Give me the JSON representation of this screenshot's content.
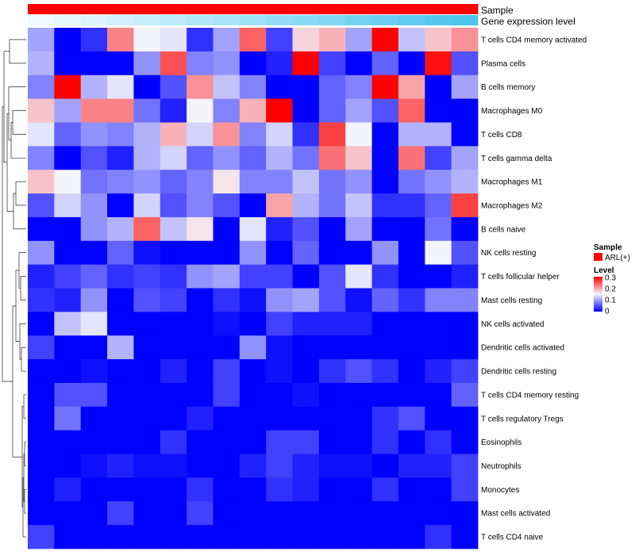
{
  "chart_data": {
    "type": "heatmap",
    "title": "",
    "annotations": [
      {
        "name": "Sample",
        "label": "Sample"
      },
      {
        "name": "Gene expression level",
        "label": "Gene expression level"
      }
    ],
    "rows": [
      "T cells CD4 memory activated",
      "Plasma cells",
      "B cells memory",
      "Macrophages M0",
      "T cells CD8",
      "T cells gamma delta",
      "Macrophages M1",
      "Macrophages M2",
      "B cells naive",
      "NK cells resting",
      "T cells follicular helper",
      "Mast cells resting",
      "NK cells activated",
      "Dendritic cells activated",
      "Dendritic cells resting",
      "T cells CD4 memory resting",
      "T cells regulatory  Tregs",
      "Eosinophils",
      "Neutrophils",
      "Monocytes",
      "Mast cells activated",
      "T cells CD4 naive"
    ],
    "n_columns": 17,
    "gene_expression_level": [
      0.0,
      0.02,
      0.04,
      0.06,
      0.08,
      0.1,
      0.12,
      0.14,
      0.16,
      0.18,
      0.2,
      0.22,
      0.24,
      0.26,
      0.28,
      0.3,
      0.32
    ],
    "values": [
      [
        0.1,
        0.0,
        0.03,
        0.22,
        0.15,
        0.14,
        0.03,
        0.1,
        0.24,
        0.04,
        0.17,
        0.19,
        0.1,
        0.3,
        0.12,
        0.18,
        0.21
      ],
      [
        0.11,
        0.0,
        0.0,
        0.0,
        0.09,
        0.25,
        0.08,
        0.09,
        0.0,
        0.02,
        0.3,
        0.04,
        0.0,
        0.06,
        0.0,
        0.29,
        0.05
      ],
      [
        0.08,
        0.3,
        0.11,
        0.14,
        0.0,
        0.05,
        0.21,
        0.12,
        0.08,
        0.0,
        0.0,
        0.06,
        0.08,
        0.3,
        0.2,
        0.0,
        0.1
      ],
      [
        0.18,
        0.1,
        0.22,
        0.22,
        0.07,
        0.02,
        0.15,
        0.08,
        0.19,
        0.3,
        0.0,
        0.06,
        0.1,
        0.05,
        0.24,
        0.0,
        0.0
      ],
      [
        0.14,
        0.06,
        0.09,
        0.08,
        0.11,
        0.19,
        0.13,
        0.21,
        0.08,
        0.13,
        0.03,
        0.26,
        0.15,
        0.0,
        0.11,
        0.11,
        0.0
      ],
      [
        0.08,
        0.0,
        0.05,
        0.02,
        0.11,
        0.13,
        0.06,
        0.09,
        0.06,
        0.11,
        0.07,
        0.23,
        0.18,
        0.0,
        0.23,
        0.04,
        0.1
      ],
      [
        0.18,
        0.15,
        0.07,
        0.08,
        0.09,
        0.06,
        0.08,
        0.16,
        0.08,
        0.08,
        0.12,
        0.07,
        0.09,
        0.0,
        0.07,
        0.09,
        0.11
      ],
      [
        0.05,
        0.13,
        0.09,
        0.0,
        0.13,
        0.05,
        0.08,
        0.05,
        0.0,
        0.2,
        0.11,
        0.07,
        0.12,
        0.03,
        0.03,
        0.06,
        0.26
      ],
      [
        0.0,
        0.0,
        0.09,
        0.11,
        0.24,
        0.12,
        0.16,
        0.0,
        0.14,
        0.02,
        0.05,
        0.0,
        0.1,
        0.0,
        0.0,
        0.07,
        0.0
      ],
      [
        0.09,
        0.0,
        0.0,
        0.06,
        0.01,
        0.0,
        0.0,
        0.0,
        0.09,
        0.0,
        0.06,
        0.0,
        0.0,
        0.09,
        0.0,
        0.15,
        0.05
      ],
      [
        0.02,
        0.04,
        0.06,
        0.03,
        0.04,
        0.03,
        0.09,
        0.1,
        0.04,
        0.04,
        0.0,
        0.05,
        0.14,
        0.03,
        0.0,
        0.0,
        0.02
      ],
      [
        0.03,
        0.02,
        0.09,
        0.0,
        0.05,
        0.04,
        0.0,
        0.03,
        0.01,
        0.09,
        0.1,
        0.05,
        0.01,
        0.06,
        0.03,
        0.08,
        0.08
      ],
      [
        0.0,
        0.12,
        0.14,
        0.0,
        0.0,
        0.0,
        0.0,
        0.01,
        0.0,
        0.04,
        0.02,
        0.02,
        0.02,
        0.0,
        0.0,
        0.0,
        0.0
      ],
      [
        0.04,
        0.0,
        0.0,
        0.11,
        0.0,
        0.0,
        0.0,
        0.0,
        0.09,
        0.01,
        0.0,
        0.0,
        0.0,
        0.0,
        0.0,
        0.0,
        0.0
      ],
      [
        0.0,
        0.0,
        0.01,
        0.0,
        0.0,
        0.02,
        0.0,
        0.04,
        0.0,
        0.01,
        0.0,
        0.03,
        0.05,
        0.03,
        0.0,
        0.02,
        0.04
      ],
      [
        0.0,
        0.05,
        0.05,
        0.0,
        0.0,
        0.0,
        0.0,
        0.04,
        0.0,
        0.0,
        0.01,
        0.0,
        0.0,
        0.0,
        0.0,
        0.0,
        0.06
      ],
      [
        0.0,
        0.07,
        0.0,
        0.0,
        0.0,
        0.0,
        0.02,
        0.0,
        0.0,
        0.0,
        0.0,
        0.0,
        0.0,
        0.03,
        0.05,
        0.0,
        0.0
      ],
      [
        0.0,
        0.0,
        0.0,
        0.0,
        0.0,
        0.03,
        0.0,
        0.0,
        0.0,
        0.04,
        0.04,
        0.0,
        0.0,
        0.03,
        0.0,
        0.03,
        0.0
      ],
      [
        0.0,
        0.0,
        0.01,
        0.02,
        0.01,
        0.01,
        0.0,
        0.0,
        0.02,
        0.04,
        0.02,
        0.01,
        0.01,
        0.0,
        0.02,
        0.02,
        0.04
      ],
      [
        0.0,
        0.02,
        0.0,
        0.0,
        0.0,
        0.0,
        0.03,
        0.0,
        0.0,
        0.03,
        0.02,
        0.0,
        0.0,
        0.03,
        0.0,
        0.0,
        0.04
      ],
      [
        0.0,
        0.0,
        0.0,
        0.04,
        0.0,
        0.0,
        0.04,
        0.0,
        0.0,
        0.0,
        0.0,
        0.0,
        0.0,
        0.0,
        0.0,
        0.0,
        0.0
      ],
      [
        0.04,
        0.0,
        0.0,
        0.0,
        0.0,
        0.0,
        0.0,
        0.0,
        0.0,
        0.0,
        0.0,
        0.0,
        0.0,
        0.0,
        0.0,
        0.03,
        0.0
      ]
    ],
    "color_scale": {
      "min": 0,
      "mid": 0.15,
      "max": 0.3,
      "low_color": "#0000ff",
      "mid_color": "#f4f4fb",
      "high_color": "#ff0000"
    },
    "annotation_colors": {
      "sample": "#ff0000",
      "expr_low": "#f0fbff",
      "expr_high": "#4cc4ee"
    },
    "legend": {
      "sample_title": "Sample",
      "sample_entry": "ARL(+)",
      "level_title": "Level",
      "level_ticks": [
        "0.3",
        "0.2",
        "0.1",
        "0"
      ]
    },
    "dendrogram": "left"
  }
}
